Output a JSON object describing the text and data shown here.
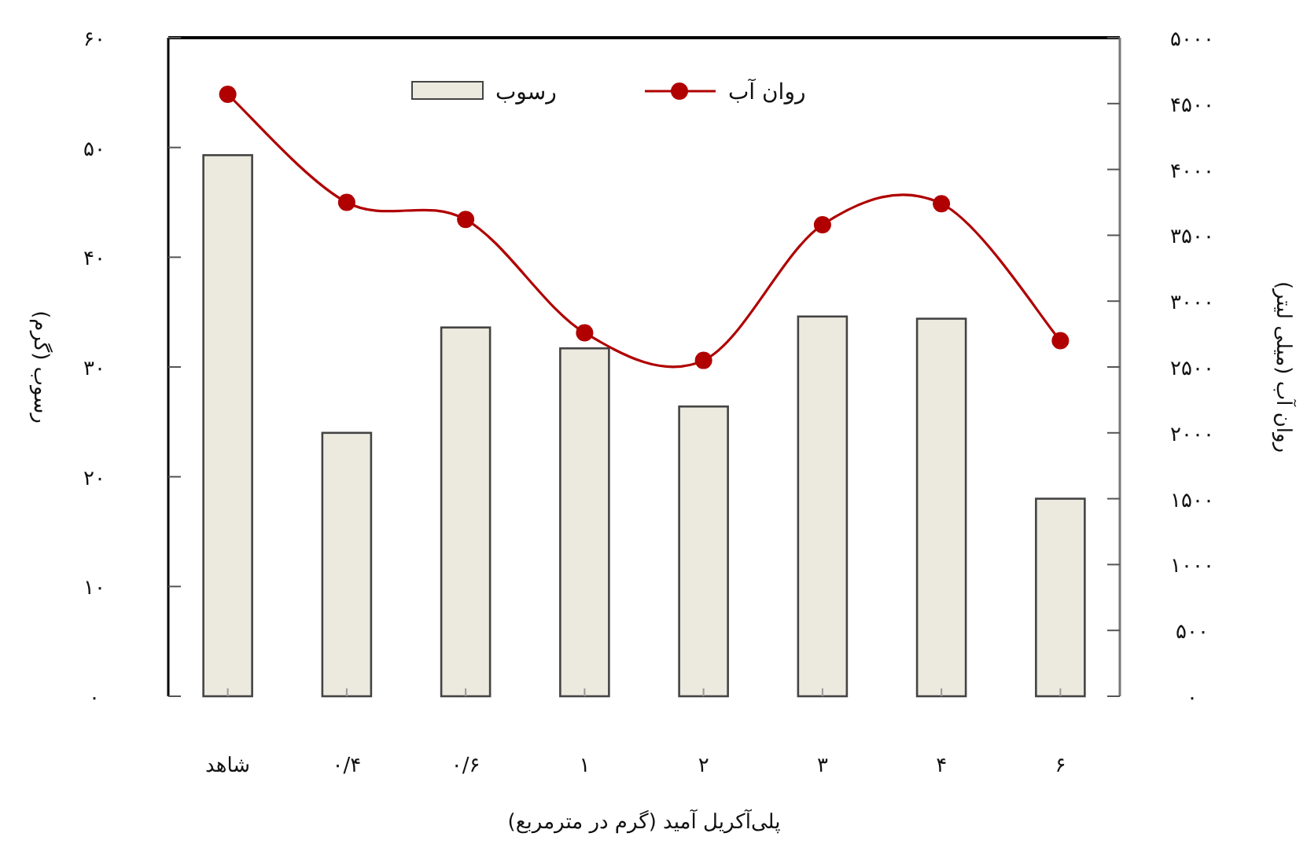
{
  "chart_data": {
    "type": "bar",
    "xlabel": "پلی‌آکریل آمید (گرم در مترمربع)",
    "ylabel": "رسوب (گرم)",
    "y2label": "روان آب (میلی لیتر)",
    "categories": [
      "شاهد",
      "۰/۴",
      "۰/۶",
      "۱",
      "۲",
      "۳",
      "۴",
      "۶"
    ],
    "series": [
      {
        "name": "رسوب",
        "color": "#ece9df",
        "values": [
          49.3,
          24.0,
          33.6,
          31.7,
          26.4,
          34.6,
          34.4,
          18.0
        ]
      },
      {
        "name": "روان آب",
        "type": "line",
        "axis": "y2",
        "color": "#b00000",
        "marker": "circle",
        "values": [
          4570,
          3750,
          3620,
          2760,
          2550,
          3580,
          3740,
          2700
        ]
      }
    ],
    "ylim": [
      0,
      60
    ],
    "yticks": [
      {
        "value": 0,
        "label": "۰"
      },
      {
        "value": 10,
        "label": "۱۰"
      },
      {
        "value": 20,
        "label": "۲۰"
      },
      {
        "value": 30,
        "label": "۳۰"
      },
      {
        "value": 40,
        "label": "۴۰"
      },
      {
        "value": 50,
        "label": "۵۰"
      },
      {
        "value": 60,
        "label": "۶۰"
      }
    ],
    "y2lim": [
      0,
      5000
    ],
    "y2ticks": [
      {
        "value": 0,
        "label": "۰"
      },
      {
        "value": 500,
        "label": "۵۰۰"
      },
      {
        "value": 1000,
        "label": "۱۰۰۰"
      },
      {
        "value": 1500,
        "label": "۱۵۰۰"
      },
      {
        "value": 2000,
        "label": "۲۰۰۰"
      },
      {
        "value": 2500,
        "label": "۲۵۰۰"
      },
      {
        "value": 3000,
        "label": "۳۰۰۰"
      },
      {
        "value": 3500,
        "label": "۳۵۰۰"
      },
      {
        "value": 4000,
        "label": "۴۰۰۰"
      },
      {
        "value": 4500,
        "label": "۴۵۰۰"
      },
      {
        "value": 5000,
        "label": "۵۰۰۰"
      }
    ],
    "legend": "top",
    "grid": false
  }
}
